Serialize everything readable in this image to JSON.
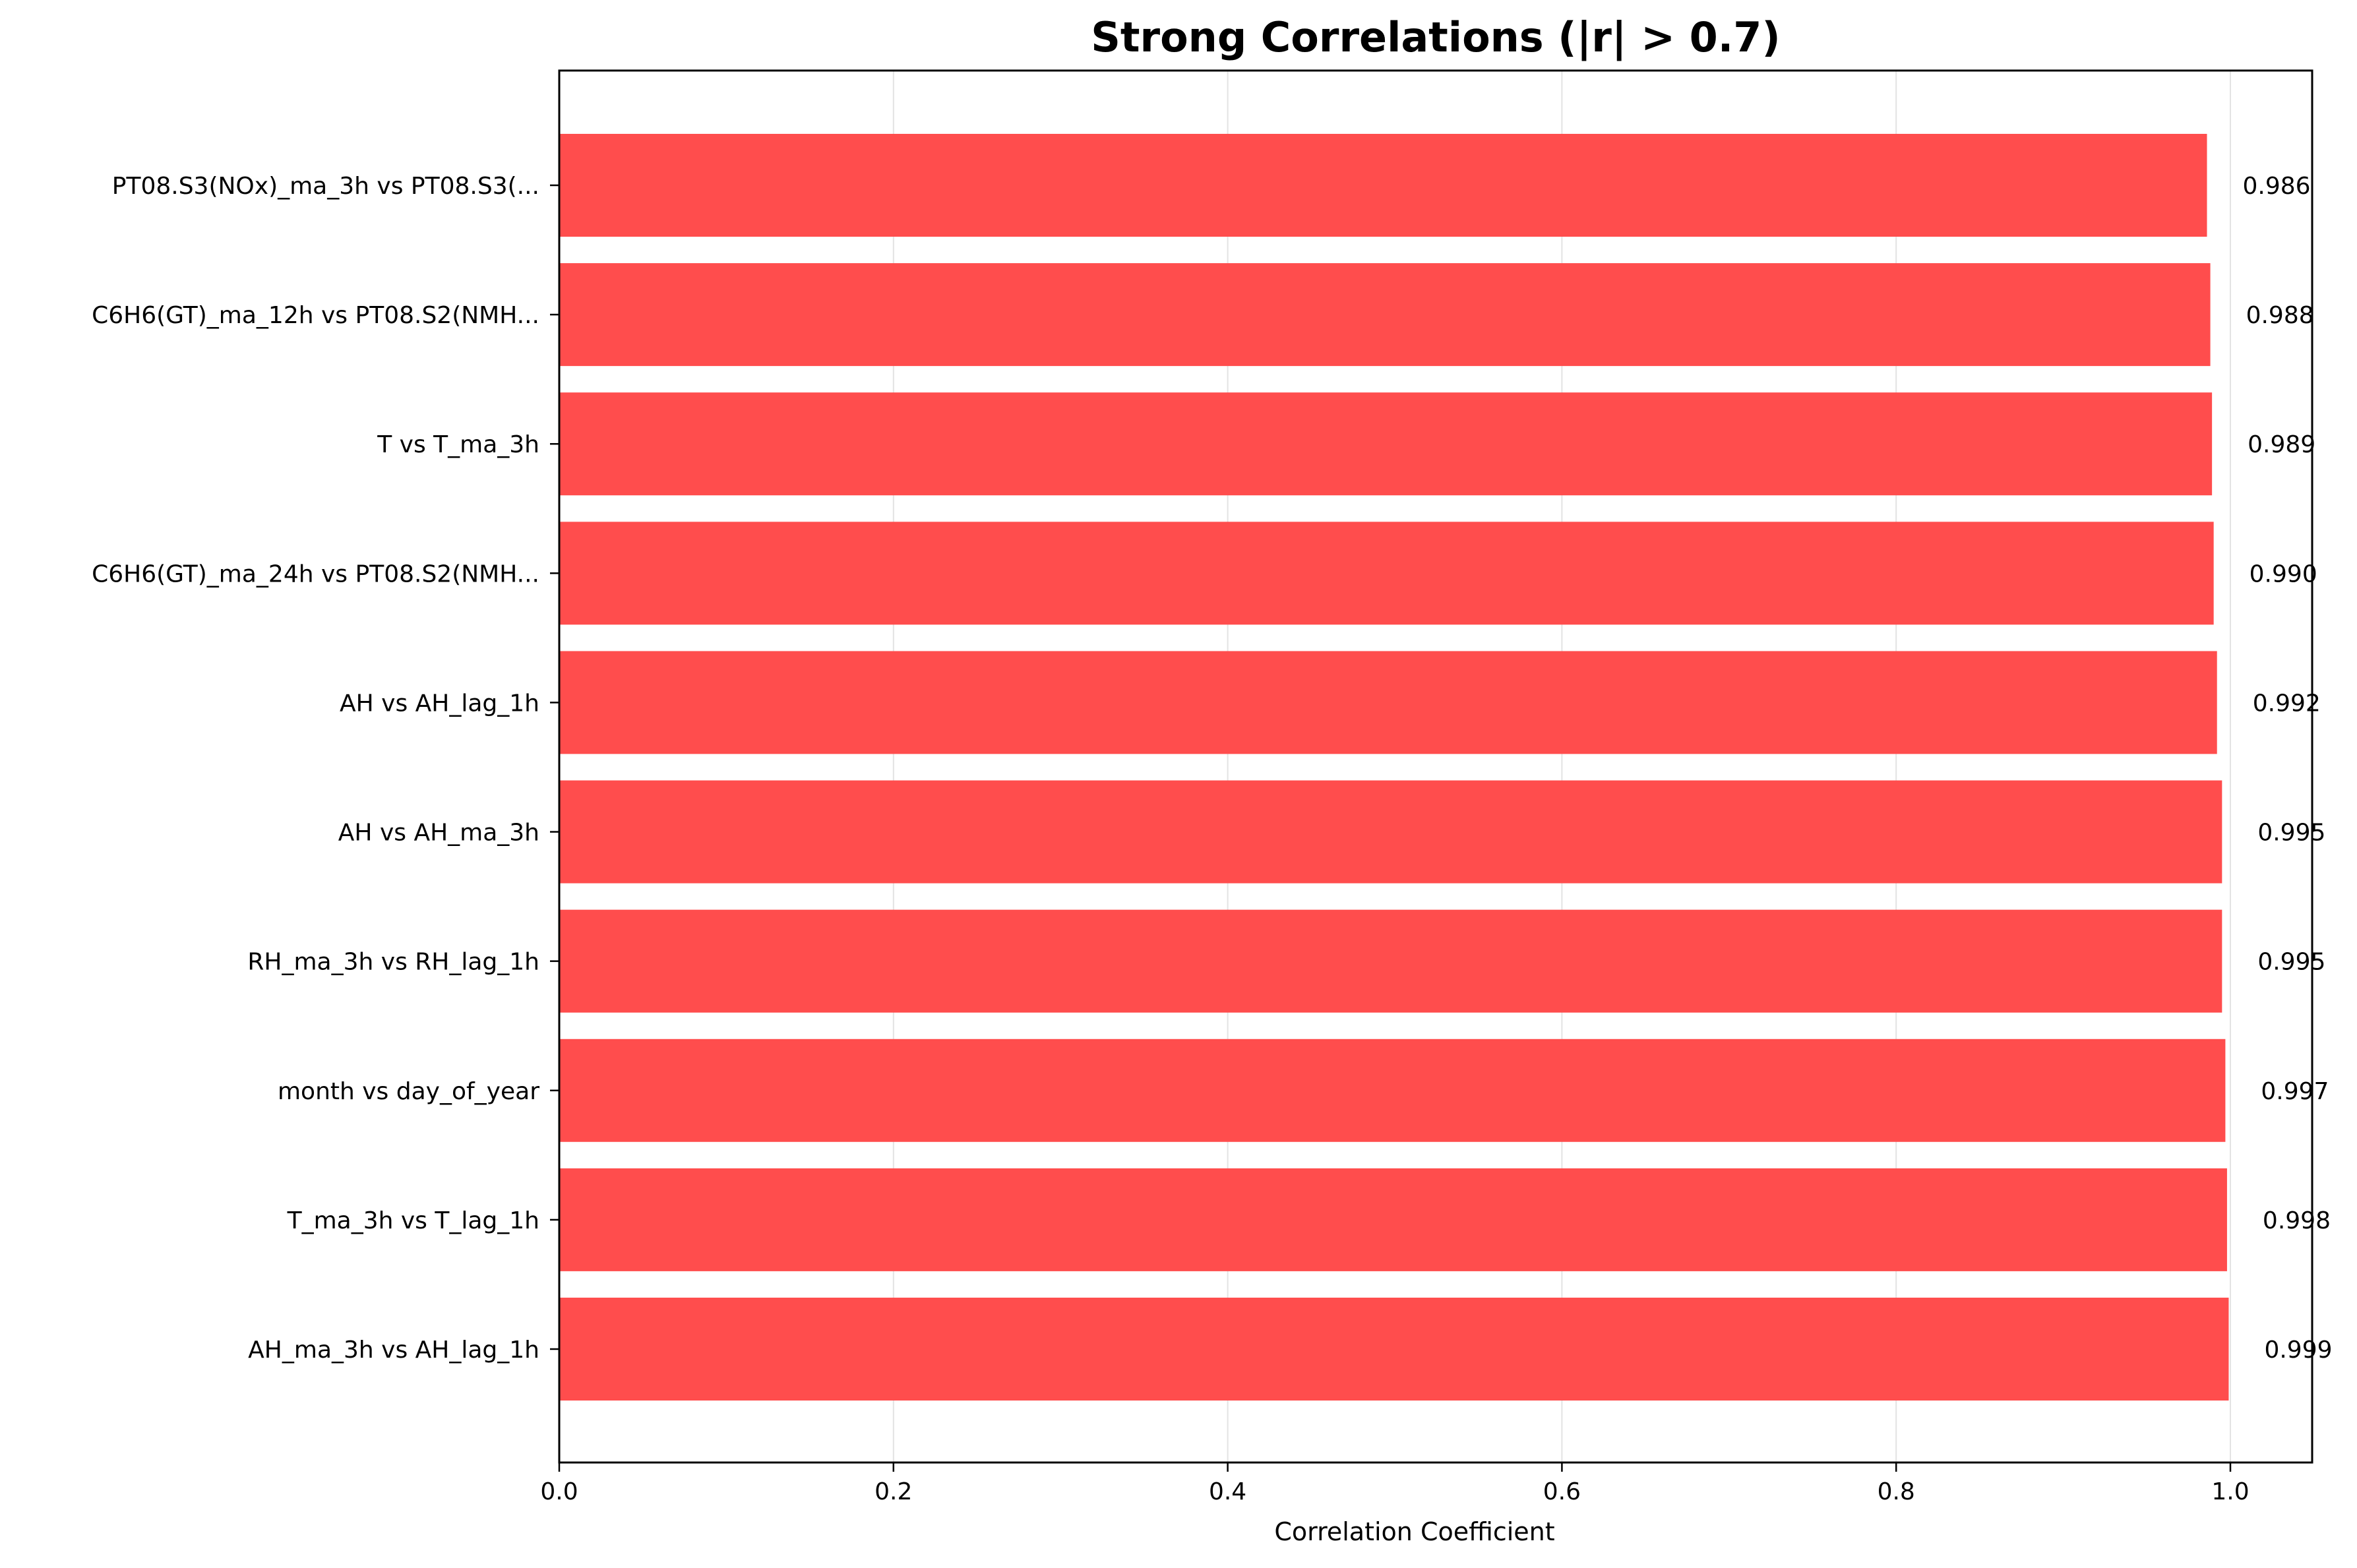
{
  "chart_data": {
    "type": "bar",
    "orientation": "horizontal",
    "title": "Strong Correlations (|r| > 0.7)",
    "xlabel": "Correlation Coefficient",
    "ylabel": "",
    "xlim": [
      0,
      1.048
    ],
    "xticks": [
      0.0,
      0.2,
      0.4,
      0.6,
      0.8,
      1.0
    ],
    "xtick_labels": [
      "0.0",
      "0.2",
      "0.4",
      "0.6",
      "0.8",
      "1.0"
    ],
    "grid": "vertical gridlines on",
    "legend": "none",
    "bar_color": "#ff4d4d",
    "categories": [
      "PT08.S3(NOx)_ma_3h vs PT08.S3(...",
      "C6H6(GT)_ma_12h vs PT08.S2(NMH...",
      "T vs T_ma_3h",
      "C6H6(GT)_ma_24h vs PT08.S2(NMH...",
      "AH vs AH_lag_1h",
      "AH vs AH_ma_3h",
      "RH_ma_3h vs RH_lag_1h",
      "month vs day_of_year",
      "T_ma_3h vs T_lag_1h",
      "AH_ma_3h vs AH_lag_1h"
    ],
    "values": [
      0.986,
      0.988,
      0.989,
      0.99,
      0.992,
      0.995,
      0.995,
      0.997,
      0.998,
      0.999
    ],
    "value_labels": [
      "0.986",
      "0.988",
      "0.989",
      "0.990",
      "0.992",
      "0.995",
      "0.995",
      "0.997",
      "0.998",
      "0.999"
    ]
  }
}
